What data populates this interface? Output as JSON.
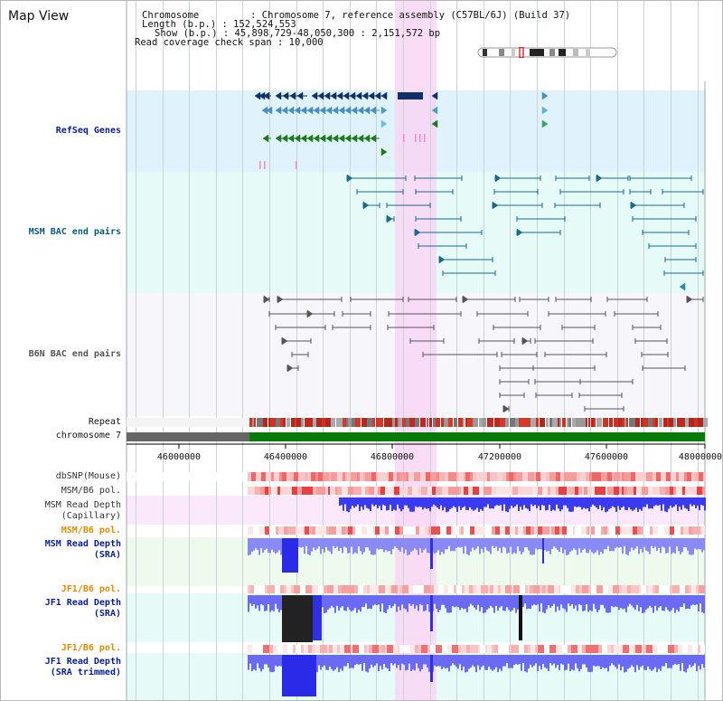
{
  "title": "Map View",
  "info": {
    "chromosome": "Chromosome         : Chromosome 7, reference assembly (C57BL/6J) (Build 37)",
    "length": "Length (b.p.) : 152,524,553",
    "show": "Show (b.p.) : 45,898,729-48,050,300 : 2,151,572 bp",
    "span": "Read coverage check span : 10,000"
  },
  "tracks": {
    "refseq": "RefSeq Genes",
    "msm_bac": "MSM BAC end pairs",
    "b6n_bac": "B6N BAC end pairs",
    "repeat": "Repeat",
    "chromosome": "chromosome 7",
    "dbsnp": "dbSNP(Mouse)",
    "msm_b6_pol": "MSM/B6 pol.",
    "msm_depth_cap_1": "MSM Read Depth",
    "msm_depth_cap_2": "(Capillary)",
    "msm_b6_pol_2": "MSM/B6 pol.",
    "msm_depth_sra_1": "MSM Read Depth",
    "msm_depth_sra_2": "(SRA)",
    "jf1_b6_pol": "JF1/B6 pol.",
    "jf1_depth_sra_1": "JF1 Read Depth",
    "jf1_depth_sra_2": "(SRA)",
    "jf1_b6_pol_2": "JF1/B6 pol.",
    "jf1_depth_trim_1": "JF1 Read Depth",
    "jf1_depth_trim_2": "(SRA trimmed)"
  },
  "axis": {
    "ticks": [
      "46000000",
      "46400000",
      "46800000",
      "47200000",
      "47600000",
      "48000000"
    ]
  },
  "colors": {
    "refseq_bg": "#e0f2fb",
    "msm_bg": "#e6fbf8",
    "b6n_bg": "#f6f6fb",
    "highlight": "#f8d6f4",
    "gene_dark": "#10306a",
    "gene_mid": "#4a8ec0",
    "gene_green": "#1f7a1f",
    "msm_pair": "#1a6a8a",
    "b6n_pair": "#555555",
    "label_blue": "#0a1f8f",
    "label_teal": "#0a5a7a",
    "label_orange": "#e08a00"
  }
}
